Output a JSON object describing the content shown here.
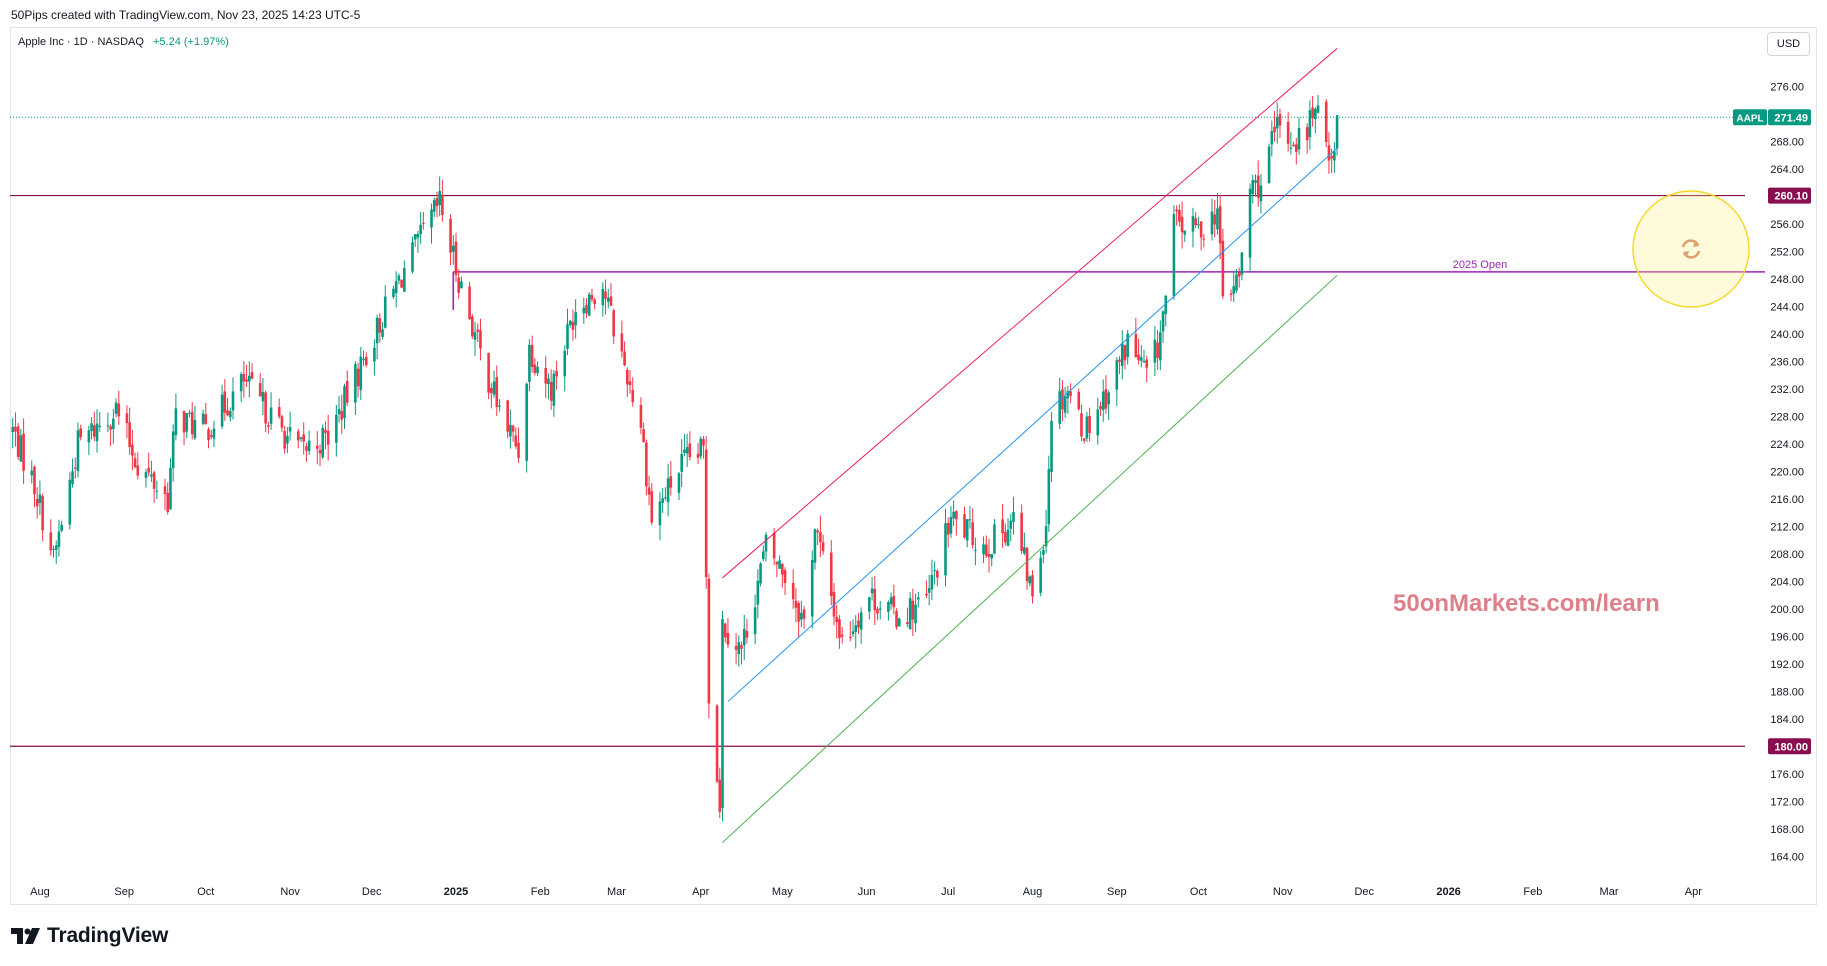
{
  "header": {
    "credit": "50Pips created with TradingView.com, Nov 23, 2025 14:23 UTC-5"
  },
  "symbol": {
    "name": "Apple Inc · 1D · NASDAQ",
    "change": "+5.24 (+1.97%)"
  },
  "currency_button": "USD",
  "price_tag": {
    "ticker": "AAPL",
    "price": "271.49"
  },
  "watermark": "50onMarkets.com/learn",
  "brand": "TradingView",
  "colors": {
    "up": "#089981",
    "down": "#f23645",
    "resistance": "#880e4f",
    "open_line": "#9c27b0",
    "channel_upper": "#e91e63",
    "channel_mid": "#2196f3",
    "channel_lower": "#4caf50",
    "price_tag": "#089981"
  },
  "chart_data": {
    "type": "candlestick",
    "title": "Apple Inc · 1D · NASDAQ",
    "ylim": [
      162,
      282
    ],
    "y_ticks": [
      164,
      168,
      172,
      176,
      180,
      184,
      188,
      192,
      196,
      200,
      204,
      208,
      212,
      216,
      220,
      224,
      228,
      232,
      236,
      240,
      244,
      248,
      252,
      256,
      260,
      264,
      268,
      272,
      276
    ],
    "y_tick_labels": [
      "164.00",
      "168.00",
      "172.00",
      "176.00",
      "180.00",
      "184.00",
      "188.00",
      "192.00",
      "196.00",
      "200.00",
      "204.00",
      "208.00",
      "212.00",
      "216.00",
      "220.00",
      "224.00",
      "228.00",
      "232.00",
      "236.00",
      "240.00",
      "244.00",
      "248.00",
      "252.00",
      "256.00",
      "260.00",
      "264.00",
      "268.00",
      "272.00",
      "276.00"
    ],
    "x_labels": [
      {
        "label": "Aug",
        "date": "2024-08-01"
      },
      {
        "label": "Sep",
        "date": "2024-09-01"
      },
      {
        "label": "Oct",
        "date": "2024-10-01"
      },
      {
        "label": "Nov",
        "date": "2024-11-01"
      },
      {
        "label": "Dec",
        "date": "2024-12-01"
      },
      {
        "label": "2025",
        "date": "2025-01-01",
        "bold": true
      },
      {
        "label": "Feb",
        "date": "2025-02-01"
      },
      {
        "label": "Mar",
        "date": "2025-03-01"
      },
      {
        "label": "Apr",
        "date": "2025-04-01"
      },
      {
        "label": "May",
        "date": "2025-05-01"
      },
      {
        "label": "Jun",
        "date": "2025-06-01"
      },
      {
        "label": "Jul",
        "date": "2025-07-01"
      },
      {
        "label": "Aug",
        "date": "2025-08-01"
      },
      {
        "label": "Sep",
        "date": "2025-09-01"
      },
      {
        "label": "Oct",
        "date": "2025-10-01"
      },
      {
        "label": "Nov",
        "date": "2025-11-01"
      },
      {
        "label": "Dec",
        "date": "2025-12-01"
      },
      {
        "label": "2026",
        "date": "2026-01-01",
        "bold": true
      },
      {
        "label": "Feb",
        "date": "2026-02-01"
      },
      {
        "label": "Mar",
        "date": "2026-03-01"
      },
      {
        "label": "Apr",
        "date": "2026-04-01"
      }
    ],
    "x_range": [
      "2024-07-21",
      "2026-04-20"
    ],
    "last_price": 271.49,
    "horizontal_lines": [
      {
        "price": 260.1,
        "label": "260.10",
        "style": "resistance"
      },
      {
        "price": 180.0,
        "label": "180.00",
        "style": "resistance"
      }
    ],
    "open_line": {
      "price": 249.0,
      "start": "2024-12-31",
      "label": "2025 Open"
    },
    "trend_lines": [
      {
        "name": "channel_upper",
        "from": [
          "2025-04-09",
          204.5
        ],
        "to": [
          "2025-11-21",
          281.5
        ]
      },
      {
        "name": "channel_mid",
        "from": [
          "2025-04-11",
          186.5
        ],
        "to": [
          "2025-11-21",
          267.0
        ]
      },
      {
        "name": "channel_lower",
        "from": [
          "2025-04-09",
          166.0
        ],
        "to": [
          "2025-11-21",
          248.5
        ]
      }
    ],
    "path": [
      [
        "2024-07-22",
        226
      ],
      [
        "2024-07-30",
        218
      ],
      [
        "2024-08-05",
        209
      ],
      [
        "2024-08-06",
        207
      ],
      [
        "2024-08-15",
        224
      ],
      [
        "2024-08-29",
        229
      ],
      [
        "2024-09-06",
        221
      ],
      [
        "2024-09-17",
        216
      ],
      [
        "2024-09-20",
        228
      ],
      [
        "2024-10-01",
        226
      ],
      [
        "2024-10-15",
        233
      ],
      [
        "2024-10-31",
        225
      ],
      [
        "2024-11-05",
        223
      ],
      [
        "2024-11-15",
        225
      ],
      [
        "2024-11-29",
        237
      ],
      [
        "2024-12-10",
        247
      ],
      [
        "2024-12-26",
        259
      ],
      [
        "2024-12-31",
        251
      ],
      [
        "2025-01-10",
        237
      ],
      [
        "2025-01-17",
        229
      ],
      [
        "2025-01-24",
        223
      ],
      [
        "2025-01-28",
        238
      ],
      [
        "2025-02-05",
        232
      ],
      [
        "2025-02-14",
        244
      ],
      [
        "2025-02-24",
        247
      ],
      [
        "2025-02-28",
        241
      ],
      [
        "2025-03-10",
        227
      ],
      [
        "2025-03-14",
        213
      ],
      [
        "2025-03-25",
        221
      ],
      [
        "2025-04-02",
        223
      ],
      [
        "2025-04-04",
        188
      ],
      [
        "2025-04-08",
        172
      ],
      [
        "2025-04-09",
        198
      ],
      [
        "2025-04-16",
        194
      ],
      [
        "2025-04-25",
        209
      ],
      [
        "2025-05-02",
        205
      ],
      [
        "2025-05-09",
        198
      ],
      [
        "2025-05-13",
        212
      ],
      [
        "2025-05-23",
        195
      ],
      [
        "2025-06-02",
        202
      ],
      [
        "2025-06-12",
        199
      ],
      [
        "2025-06-23",
        201
      ],
      [
        "2025-07-02",
        213
      ],
      [
        "2025-07-15",
        209
      ],
      [
        "2025-07-25",
        213
      ],
      [
        "2025-08-01",
        202
      ],
      [
        "2025-08-06",
        213
      ],
      [
        "2025-08-08",
        229
      ],
      [
        "2025-08-14",
        232
      ],
      [
        "2025-08-20",
        226
      ],
      [
        "2025-08-29",
        232
      ],
      [
        "2025-09-05",
        239
      ],
      [
        "2025-09-12",
        234
      ],
      [
        "2025-09-16",
        238
      ],
      [
        "2025-09-19",
        245
      ],
      [
        "2025-09-22",
        256
      ],
      [
        "2025-10-01",
        255
      ],
      [
        "2025-10-08",
        258
      ],
      [
        "2025-10-10",
        245
      ],
      [
        "2025-10-16",
        248
      ],
      [
        "2025-10-20",
        261
      ],
      [
        "2025-10-24",
        262
      ],
      [
        "2025-10-30",
        270
      ],
      [
        "2025-11-04",
        268
      ],
      [
        "2025-11-10",
        269
      ],
      [
        "2025-11-12",
        273
      ],
      [
        "2025-11-17",
        268
      ],
      [
        "2025-11-20",
        266
      ],
      [
        "2025-11-21",
        271.49
      ]
    ]
  }
}
